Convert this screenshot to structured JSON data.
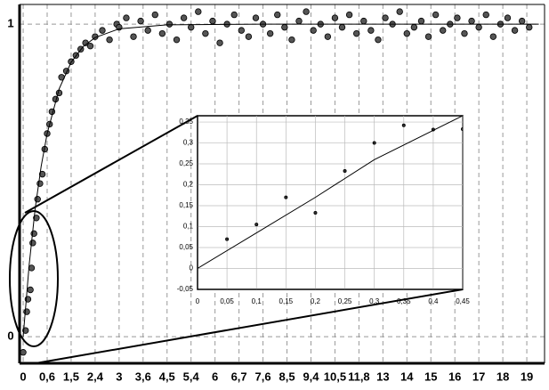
{
  "chart_data": [
    {
      "type": "scatter",
      "xticks": [
        0,
        {
          "value": 1,
          "label": "0,6"
        },
        {
          "value": 2,
          "label": "1,5"
        },
        {
          "value": 3,
          "label": "2,4"
        },
        {
          "value": 4,
          "label": "3"
        },
        {
          "value": 5,
          "label": "3,6"
        },
        {
          "value": 6,
          "label": "4,5"
        },
        {
          "value": 7,
          "label": "5,4"
        },
        {
          "value": 8,
          "label": "6"
        },
        {
          "value": 9,
          "label": "6,7"
        },
        {
          "value": 10,
          "label": "7,6"
        },
        {
          "value": 11,
          "label": "8,5"
        },
        {
          "value": 12,
          "label": "9,4"
        },
        {
          "value": 13,
          "label": "10,5"
        },
        {
          "value": 14,
          "label": "11,8"
        },
        {
          "value": 15,
          "label": "13"
        },
        {
          "value": 16,
          "label": "14"
        },
        {
          "value": 17,
          "label": "15"
        },
        {
          "value": 18,
          "label": "16"
        },
        {
          "value": 19,
          "label": "17"
        },
        {
          "value": 20,
          "label": "18"
        },
        {
          "value": 21,
          "label": "19"
        }
      ],
      "yticks": [
        0,
        1
      ],
      "xlim": [
        -0.15,
        21.74
      ],
      "ylim": [
        -0.085,
        1.063
      ],
      "grid": true,
      "series": [
        {
          "kind": "points",
          "color": "#555555",
          "x": [
            0,
            0.1,
            0.15,
            0.2,
            0.3,
            0.35,
            0.4,
            0.45,
            0.55,
            0.6,
            0.7,
            0.8,
            0.9,
            1.0,
            1.1,
            1.2,
            1.35,
            1.5,
            1.6,
            1.8,
            2.0,
            2.2,
            2.4,
            2.6,
            2.8,
            3.0,
            3.3,
            3.6,
            3.9,
            4.0,
            4.3,
            4.6,
            4.9,
            5.2,
            5.5,
            5.8,
            6.1,
            6.4,
            6.7,
            7.0,
            7.3,
            7.6,
            7.9,
            8.2,
            8.5,
            8.8,
            9.1,
            9.4,
            9.7,
            10.0,
            10.3,
            10.6,
            10.9,
            11.2,
            11.5,
            11.8,
            12.1,
            12.4,
            12.7,
            13.0,
            13.3,
            13.6,
            13.9,
            14.2,
            14.5,
            14.8,
            15.1,
            15.4,
            15.7,
            16.0,
            16.3,
            16.6,
            16.9,
            17.2,
            17.5,
            17.8,
            18.1,
            18.4,
            18.7,
            19.0,
            19.3,
            19.6,
            19.9,
            20.2,
            20.5,
            20.8,
            21.1
          ],
          "values": [
            -0.05,
            0.02,
            0.08,
            0.12,
            0.15,
            0.22,
            0.3,
            0.33,
            0.38,
            0.44,
            0.49,
            0.52,
            0.6,
            0.65,
            0.68,
            0.72,
            0.76,
            0.78,
            0.83,
            0.85,
            0.88,
            0.9,
            0.92,
            0.94,
            0.93,
            0.96,
            0.98,
            0.95,
            1.0,
            0.99,
            1.02,
            0.96,
            1.01,
            0.98,
            1.03,
            0.97,
            1.0,
            0.95,
            1.02,
            0.99,
            1.04,
            0.97,
            1.01,
            0.94,
            1.0,
            1.03,
            0.98,
            0.96,
            1.02,
            1.0,
            0.97,
            1.03,
            0.99,
            0.95,
            1.01,
            1.04,
            0.98,
            1.0,
            0.96,
            1.02,
            0.99,
            1.03,
            0.97,
            1.01,
            0.98,
            0.95,
            1.02,
            1.0,
            1.04,
            0.97,
            0.99,
            1.01,
            0.96,
            1.03,
            0.98,
            1.0,
            1.02,
            0.97,
            1.01,
            0.99,
            1.03,
            0.96,
            1.0,
            1.02,
            0.98,
            1.01,
            0.99
          ]
        },
        {
          "kind": "line",
          "color": "#000000",
          "x": [
            0,
            0.25,
            0.5,
            0.75,
            1,
            1.5,
            2,
            2.5,
            3,
            4,
            6,
            10,
            21.5
          ],
          "values": [
            0,
            0.23,
            0.41,
            0.545,
            0.65,
            0.793,
            0.878,
            0.928,
            0.957,
            0.985,
            0.998,
            1.0,
            1.0
          ]
        }
      ]
    },
    {
      "type": "scatter",
      "xticks": [
        0,
        {
          "value": 0.05,
          "label": "0,05"
        },
        {
          "value": 0.1,
          "label": "0,1"
        },
        {
          "value": 0.15,
          "label": "0,15"
        },
        {
          "value": 0.2,
          "label": "0,2"
        },
        {
          "value": 0.25,
          "label": "0,25"
        },
        {
          "value": 0.3,
          "label": "0,3"
        },
        {
          "value": 0.35,
          "label": "0,35"
        },
        {
          "value": 0.4,
          "label": "0,4"
        },
        {
          "value": 0.45,
          "label": "0,45"
        }
      ],
      "yticks": [
        {
          "value": -0.05,
          "label": "-0,05"
        },
        0,
        {
          "value": 0.05,
          "label": "0,05"
        },
        {
          "value": 0.1,
          "label": "0,1"
        },
        {
          "value": 0.15,
          "label": "0,15"
        },
        {
          "value": 0.2,
          "label": "0,2"
        },
        {
          "value": 0.25,
          "label": "0,25"
        },
        {
          "value": 0.3,
          "label": "0,3"
        },
        {
          "value": 0.35,
          "label": "0,35"
        }
      ],
      "xlim": [
        0,
        0.45
      ],
      "ylim": [
        -0.05,
        0.365
      ],
      "grid": true,
      "series": [
        {
          "kind": "points",
          "color": "#333333",
          "x": [
            0.05,
            0.1,
            0.15,
            0.2,
            0.25,
            0.3,
            0.35,
            0.4,
            0.45
          ],
          "values": [
            0.07,
            0.105,
            0.17,
            0.133,
            0.233,
            0.3,
            0.342,
            0.332,
            0.333
          ]
        },
        {
          "kind": "line",
          "color": "#000000",
          "x": [
            0,
            0.1,
            0.2,
            0.3,
            0.45
          ],
          "values": [
            0,
            0.085,
            0.17,
            0.26,
            0.365
          ]
        }
      ]
    }
  ]
}
